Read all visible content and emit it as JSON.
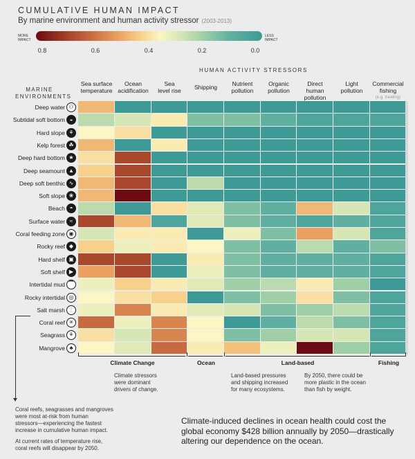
{
  "header": {
    "title": "CUMULATIVE HUMAN IMPACT",
    "subtitle": "By marine environment and human activity stressor",
    "years": "(2003-2013)"
  },
  "scale": {
    "more_label": "MORE\nIMPACT",
    "less_label": "LESS\nIMPACT",
    "ticks": [
      "0.8",
      "0.6",
      "0.4",
      "0.2",
      "0.0"
    ]
  },
  "axis": {
    "columns_title": "HUMAN ACTIVITY STRESSORS",
    "rows_title": "MARINE\nENVIRONMENTS"
  },
  "chart_data": {
    "type": "heatmap",
    "columns": [
      {
        "label": "Sea surface\ntemperature"
      },
      {
        "label": "Ocean\nacidification"
      },
      {
        "label": "Sea\nlevel rise"
      },
      {
        "label": "Shipping"
      },
      {
        "label": "Nutrient\npollution"
      },
      {
        "label": "Organic\npollution"
      },
      {
        "label": "Direct\nhuman\npollution"
      },
      {
        "label": "Light\npollution"
      },
      {
        "label": "Commercial\nfishing",
        "sublabel": "(e.g. trawling)"
      }
    ],
    "rows": [
      {
        "label": "Deep water",
        "icon": "jellyfish-icon",
        "values": [
          0.5,
          0.0,
          0.0,
          0.0,
          0.0,
          0.0,
          0.0,
          0.0,
          0.0
        ]
      },
      {
        "label": "Subtidal soft bottom",
        "icon": "clam-icon",
        "values": [
          0.25,
          0.3,
          0.4,
          0.15,
          0.15,
          0.1,
          0.05,
          0.05,
          0.05
        ]
      },
      {
        "label": "Hard slope",
        "icon": "sea-fan-icon",
        "values": [
          0.38,
          0.42,
          0.0,
          0.0,
          0.0,
          0.0,
          0.0,
          0.0,
          0.0
        ]
      },
      {
        "label": "Kelp forest",
        "icon": "kelp-icon",
        "values": [
          0.5,
          0.0,
          0.4,
          0.0,
          0.0,
          0.0,
          0.0,
          0.0,
          0.0
        ]
      },
      {
        "label": "Deep hard bottom",
        "icon": "sea-star-icon",
        "values": [
          0.42,
          0.7,
          0.0,
          0.0,
          0.0,
          0.0,
          0.0,
          0.0,
          0.0
        ]
      },
      {
        "label": "Deep seamount",
        "icon": "seamount-icon",
        "values": [
          0.45,
          0.7,
          0.0,
          0.0,
          0.0,
          0.0,
          0.0,
          0.0,
          0.0
        ]
      },
      {
        "label": "Deep soft benthic",
        "icon": "worm-icon",
        "values": [
          0.5,
          0.7,
          0.0,
          0.25,
          0.0,
          0.0,
          0.0,
          0.0,
          0.0
        ]
      },
      {
        "label": "Soft slope",
        "icon": "crab-icon",
        "values": [
          0.5,
          0.8,
          0.0,
          0.0,
          0.0,
          0.0,
          0.0,
          0.0,
          0.0
        ]
      },
      {
        "label": "Beach",
        "icon": "shell-icon",
        "values": [
          0.25,
          0.0,
          0.42,
          0.32,
          0.15,
          0.1,
          0.5,
          0.3,
          0.05
        ]
      },
      {
        "label": "Surface water",
        "icon": "wave-icon",
        "values": [
          0.7,
          0.5,
          0.05,
          0.32,
          0.15,
          0.1,
          0.05,
          0.1,
          0.05
        ]
      },
      {
        "label": "Coral feeding zone",
        "icon": "feeding-icon",
        "values": [
          0.3,
          0.4,
          0.4,
          0.0,
          0.35,
          0.15,
          0.55,
          0.3,
          0.05
        ]
      },
      {
        "label": "Rocky reef",
        "icon": "rock-icon",
        "values": [
          0.45,
          0.35,
          0.4,
          0.38,
          0.15,
          0.1,
          0.25,
          0.1,
          0.15
        ]
      },
      {
        "label": "Hard shelf",
        "icon": "lock-icon",
        "values": [
          0.7,
          0.7,
          0.0,
          0.4,
          0.15,
          0.1,
          0.1,
          0.1,
          0.05
        ]
      },
      {
        "label": "Soft shelf",
        "icon": "fish-icon",
        "values": [
          0.55,
          0.7,
          0.0,
          0.35,
          0.15,
          0.1,
          0.1,
          0.1,
          0.05
        ]
      },
      {
        "label": "Intertidal mud",
        "icon": "mudflat-icon",
        "values": [
          0.35,
          0.45,
          0.4,
          0.32,
          0.2,
          0.25,
          0.4,
          0.2,
          0.0
        ]
      },
      {
        "label": "Rocky intertidal",
        "icon": "tidepool-icon",
        "values": [
          0.38,
          0.42,
          0.45,
          0.0,
          0.15,
          0.2,
          0.42,
          0.15,
          0.05
        ]
      },
      {
        "label": "Salt marsh",
        "icon": "grass-icon",
        "values": [
          0.35,
          0.6,
          0.4,
          0.32,
          0.3,
          0.15,
          0.2,
          0.25,
          0.05
        ]
      },
      {
        "label": "Coral reef",
        "icon": "coral-icon",
        "values": [
          0.65,
          0.35,
          0.6,
          0.38,
          0.0,
          0.1,
          0.25,
          0.15,
          0.05
        ]
      },
      {
        "label": "Seagrass",
        "icon": "seagrass-icon",
        "values": [
          0.42,
          0.3,
          0.6,
          0.38,
          0.15,
          0.2,
          0.3,
          0.3,
          0.05
        ]
      },
      {
        "label": "Mangrove",
        "icon": "mangrove-icon",
        "values": [
          0.38,
          0.32,
          0.65,
          0.4,
          0.48,
          0.35,
          0.8,
          0.2,
          0.05
        ]
      }
    ],
    "xlabel": "HUMAN ACTIVITY STRESSORS",
    "ylabel": "MARINE ENVIRONMENTS",
    "color_range": [
      0.8,
      0.0
    ]
  },
  "groups": [
    {
      "label": "Climate Change",
      "note": "Climate stressors\nwere dominant\ndrivers of change."
    },
    {
      "label": "Ocean",
      "note": ""
    },
    {
      "label": "Land-based",
      "note": "Land-based pressures\nand shipping increased\nfor many ecosystems.",
      "note2": "By 2050, there could be\nmore plastic in the ocean\nthan fish by weight."
    },
    {
      "label": "Fishing",
      "note": ""
    }
  ],
  "coral_note": "Coral reefs, seagrasses and mangroves\nwere most at-risk from human\nstressors—experiencing the fastest\nincrease in cumulative human impact.",
  "coral_note2": "At current rates of temperature rise,\ncoral reefs will disappear by 2050.",
  "bottom_text": "Climate-induced declines in ocean health could cost the global economy $428 billion annually by 2050—drastically altering our dependence on the ocean.",
  "colors": {
    "high": "#6b0c12",
    "mid": "#fbf6c3",
    "low": "#3e9a96"
  }
}
